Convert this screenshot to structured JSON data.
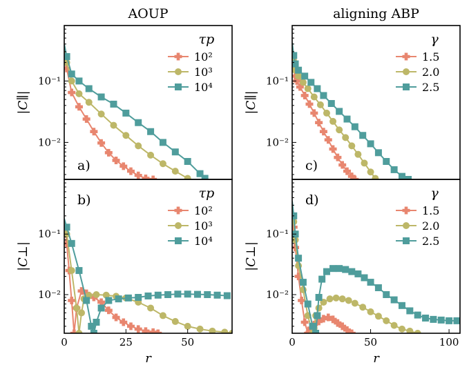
{
  "colors": {
    "s1": "#e8866f",
    "s2": "#bdb768",
    "s3": "#4f9d9c",
    "axis": "#000000"
  },
  "chart_data": [
    {
      "panel": "a)",
      "title": "AOUP",
      "type": "line",
      "xlabel": "",
      "ylabel": "|C∥|",
      "yscale": "log",
      "xlim": [
        0,
        68
      ],
      "ylim": [
        0.0025,
        0.8
      ],
      "yticks": [
        0.01,
        0.1
      ],
      "ytick_labels": [
        "10⁻²",
        "10⁻¹"
      ],
      "xticks": [],
      "legend": {
        "title": "τp",
        "position": "top-right"
      },
      "series": [
        {
          "name": "10²",
          "color": "s1",
          "x": [
            0,
            1,
            3,
            6,
            9,
            12,
            15,
            18,
            21,
            24,
            27,
            30,
            33,
            36
          ],
          "y": [
            0.3,
            0.16,
            0.065,
            0.038,
            0.024,
            0.015,
            0.0098,
            0.0068,
            0.0051,
            0.0041,
            0.0034,
            0.0029,
            0.0026,
            0.0025
          ]
        },
        {
          "name": "10³",
          "color": "s2",
          "x": [
            0,
            1,
            3,
            6,
            10,
            15,
            20,
            25,
            30,
            35,
            40,
            45,
            50
          ],
          "y": [
            0.34,
            0.2,
            0.1,
            0.062,
            0.045,
            0.029,
            0.019,
            0.013,
            0.0088,
            0.0062,
            0.0045,
            0.0034,
            0.0026
          ]
        },
        {
          "name": "10⁴",
          "color": "s3",
          "x": [
            0,
            1,
            3,
            6,
            10,
            15,
            20,
            25,
            30,
            35,
            40,
            45,
            50,
            55,
            57
          ],
          "y": [
            0.4,
            0.25,
            0.13,
            0.1,
            0.075,
            0.055,
            0.042,
            0.03,
            0.021,
            0.015,
            0.01,
            0.007,
            0.0049,
            0.0031,
            0.0026
          ]
        }
      ]
    },
    {
      "panel": "b)",
      "title": "",
      "type": "line",
      "xlabel": "r",
      "ylabel": "|C⊥|",
      "yscale": "log",
      "xlim": [
        0,
        68
      ],
      "ylim": [
        0.0023,
        0.8
      ],
      "yticks": [
        0.01,
        0.1
      ],
      "ytick_labels": [
        "10⁻²",
        "10⁻¹"
      ],
      "xticks": [
        0,
        25,
        50
      ],
      "legend": {
        "title": "τp",
        "position": "top-right"
      },
      "series": [
        {
          "name": "10²",
          "color": "s1",
          "x": [
            0,
            1,
            2,
            3,
            4,
            5,
            7,
            9,
            12,
            15,
            18,
            21,
            24,
            27,
            30,
            33,
            36,
            38
          ],
          "y": [
            0.16,
            0.07,
            0.025,
            0.008,
            0.0023,
            0.006,
            0.0115,
            0.0105,
            0.009,
            0.0075,
            0.0055,
            0.0042,
            0.0035,
            0.003,
            0.0027,
            0.0025,
            0.0024,
            0.0023
          ]
        },
        {
          "name": "10³",
          "color": "s2",
          "x": [
            0,
            1,
            3,
            5,
            6,
            7,
            8,
            10,
            13,
            17,
            21,
            25,
            30,
            35,
            40,
            45,
            50,
            55,
            60,
            65,
            68
          ],
          "y": [
            0.17,
            0.1,
            0.025,
            0.006,
            0.0023,
            0.005,
            0.0085,
            0.0097,
            0.01,
            0.0098,
            0.0094,
            0.0088,
            0.0075,
            0.006,
            0.0045,
            0.0036,
            0.003,
            0.0027,
            0.0025,
            0.0024,
            0.0023
          ]
        },
        {
          "name": "10⁴",
          "color": "s3",
          "x": [
            0,
            1,
            3,
            6,
            9,
            11,
            12,
            13,
            15,
            18,
            22,
            26,
            30,
            34,
            38,
            42,
            46,
            50,
            54,
            58,
            62,
            66
          ],
          "y": [
            0.18,
            0.13,
            0.07,
            0.025,
            0.008,
            0.003,
            0.0023,
            0.0035,
            0.006,
            0.008,
            0.0085,
            0.0088,
            0.009,
            0.0095,
            0.0098,
            0.01,
            0.0102,
            0.0102,
            0.0101,
            0.01,
            0.0098,
            0.0096
          ]
        }
      ]
    },
    {
      "panel": "c)",
      "title": "aligning ABP",
      "type": "line",
      "xlabel": "",
      "ylabel": "|C∥|",
      "yscale": "log",
      "xlim": [
        0,
        107
      ],
      "ylim": [
        0.0025,
        0.8
      ],
      "yticks": [
        0.01,
        0.1
      ],
      "ytick_labels": [
        "10⁻²",
        "10⁻¹"
      ],
      "xticks": [],
      "legend": {
        "title": "γ",
        "position": "top-right"
      },
      "series": [
        {
          "name": "1.5",
          "color": "s1",
          "x": [
            0,
            1,
            2,
            3,
            5,
            8,
            11,
            14,
            17,
            20,
            23,
            26,
            29,
            32,
            35,
            38,
            40
          ],
          "y": [
            0.3,
            0.18,
            0.12,
            0.1,
            0.08,
            0.058,
            0.042,
            0.03,
            0.021,
            0.015,
            0.011,
            0.0078,
            0.0057,
            0.0043,
            0.0034,
            0.0028,
            0.0025
          ]
        },
        {
          "name": "2.0",
          "color": "s2",
          "x": [
            0,
            1,
            2,
            4,
            7,
            10,
            14,
            18,
            22,
            26,
            30,
            34,
            38,
            42,
            46,
            50,
            53
          ],
          "y": [
            0.35,
            0.21,
            0.15,
            0.12,
            0.095,
            0.075,
            0.055,
            0.041,
            0.03,
            0.022,
            0.016,
            0.012,
            0.0088,
            0.0064,
            0.0046,
            0.0033,
            0.0026
          ]
        },
        {
          "name": "2.5",
          "color": "s3",
          "x": [
            0,
            1,
            2,
            4,
            8,
            12,
            16,
            20,
            25,
            30,
            35,
            40,
            45,
            50,
            55,
            60,
            65,
            70,
            74
          ],
          "y": [
            0.42,
            0.26,
            0.19,
            0.15,
            0.12,
            0.095,
            0.075,
            0.058,
            0.043,
            0.032,
            0.024,
            0.018,
            0.013,
            0.0095,
            0.0068,
            0.0049,
            0.0036,
            0.0028,
            0.0025
          ]
        }
      ]
    },
    {
      "panel": "d)",
      "title": "",
      "type": "line",
      "xlabel": "r",
      "ylabel": "|C⊥|",
      "yscale": "log",
      "xlim": [
        0,
        107
      ],
      "ylim": [
        0.0023,
        0.8
      ],
      "yticks": [
        0.01,
        0.1
      ],
      "ytick_labels": [
        "10⁻²",
        "10⁻¹"
      ],
      "xticks": [
        0,
        50,
        100
      ],
      "legend": {
        "title": "γ",
        "position": "top-right"
      },
      "series": [
        {
          "name": "1.5",
          "color": "s1",
          "x": [
            0,
            1,
            2,
            4,
            6,
            8,
            10,
            11,
            12,
            14,
            17,
            20,
            23,
            26,
            29,
            32,
            35,
            38
          ],
          "y": [
            0.25,
            0.13,
            0.06,
            0.02,
            0.008,
            0.0035,
            0.0023,
            0.0024,
            0.0028,
            0.0032,
            0.0036,
            0.004,
            0.0042,
            0.0039,
            0.0034,
            0.003,
            0.0026,
            0.0023
          ]
        },
        {
          "name": "2.0",
          "color": "s2",
          "x": [
            0,
            1,
            2,
            4,
            7,
            10,
            13,
            14,
            15,
            17,
            20,
            24,
            28,
            32,
            36,
            40,
            45,
            50,
            55,
            60,
            65,
            70,
            75,
            80
          ],
          "y": [
            0.3,
            0.16,
            0.08,
            0.03,
            0.012,
            0.0045,
            0.0023,
            0.0028,
            0.0045,
            0.006,
            0.0075,
            0.0085,
            0.0088,
            0.0085,
            0.008,
            0.0072,
            0.0062,
            0.0052,
            0.0044,
            0.0037,
            0.0031,
            0.0027,
            0.0025,
            0.0023
          ]
        },
        {
          "name": "2.5",
          "color": "s3",
          "x": [
            0,
            1,
            2,
            4,
            7,
            10,
            13,
            15,
            16,
            17,
            19,
            22,
            26,
            30,
            34,
            38,
            42,
            46,
            50,
            55,
            60,
            65,
            70,
            75,
            80,
            85,
            90,
            95,
            100,
            105
          ],
          "y": [
            0.35,
            0.2,
            0.1,
            0.04,
            0.016,
            0.007,
            0.003,
            0.0023,
            0.0045,
            0.009,
            0.018,
            0.024,
            0.027,
            0.027,
            0.026,
            0.024,
            0.022,
            0.019,
            0.016,
            0.013,
            0.01,
            0.0082,
            0.0066,
            0.0054,
            0.0046,
            0.0041,
            0.0039,
            0.0038,
            0.0037,
            0.0037
          ]
        }
      ]
    }
  ]
}
